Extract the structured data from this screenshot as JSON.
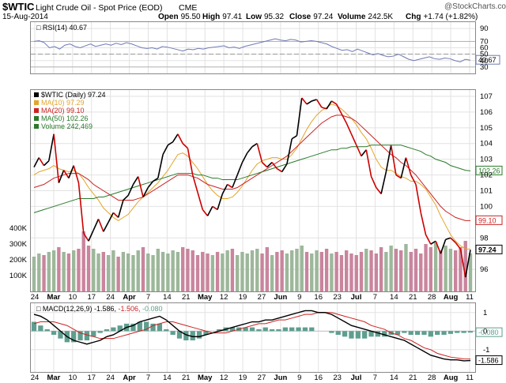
{
  "header": {
    "ticker": "$WTIC",
    "description": "Light Crude Oil - Spot Price (EOD)",
    "exchange": "CME",
    "date": "15-Aug-2014",
    "logo_text": "@StockCharts.com",
    "ohlc": [
      {
        "label": "Open",
        "value": "95.50"
      },
      {
        "label": "High",
        "value": "97.41"
      },
      {
        "label": "Low",
        "value": "95.32"
      },
      {
        "label": "Close",
        "value": "97.24"
      },
      {
        "label": "Volume",
        "value": "242.5K"
      },
      {
        "label": "Chg",
        "value": "+1.74 (+1.82%)"
      }
    ]
  },
  "x_axis_labels": [
    "24",
    "Mar",
    "10",
    "17",
    "24",
    "Apr",
    "7",
    "14",
    "21",
    "May",
    "12",
    "19",
    "27",
    "Jun",
    "9",
    "16",
    "23",
    "Jul",
    "7",
    "14",
    "21",
    "28",
    "Aug",
    "11"
  ],
  "chart_data": [
    {
      "type": "line",
      "panel": "rsi",
      "legend": "RSI(14) 40.67",
      "ylim": [
        20,
        100
      ],
      "yticks": [
        30,
        40,
        50,
        60,
        70,
        90
      ],
      "reference_lines": [
        30,
        50,
        70
      ],
      "last_value_label": "40.67",
      "colors": {
        "line": "#6f7ab5",
        "ref": "#808080"
      },
      "series": [
        {
          "values": [
            70,
            71,
            68,
            60,
            62,
            58,
            64,
            66,
            62,
            60,
            63,
            66,
            62,
            64,
            66,
            64,
            67,
            65,
            68,
            66,
            63,
            60,
            59,
            60,
            58,
            62,
            61,
            59,
            57,
            55,
            58,
            57,
            59,
            58,
            60,
            61,
            62,
            63,
            60,
            61,
            59,
            62,
            64,
            66,
            68,
            70,
            72,
            74,
            72,
            71,
            73,
            72,
            69,
            70,
            71,
            70,
            68,
            66,
            62,
            59,
            56,
            57,
            54,
            58,
            55,
            52,
            49,
            51,
            48,
            46,
            47,
            50,
            46,
            42,
            40,
            42,
            44,
            46,
            43,
            42,
            44,
            43,
            40,
            38,
            42,
            40.67
          ]
        }
      ]
    },
    {
      "type": "line",
      "panel": "price",
      "ylim": [
        94.6,
        107.4
      ],
      "yticks": [
        96,
        98,
        100,
        101,
        102,
        103,
        104,
        105,
        106,
        107
      ],
      "last_value_labels": [
        "97.24",
        "99.10",
        "102.26"
      ],
      "colors": {
        "up": "#000000",
        "down": "#cc0000",
        "ma10": "#e3a52a",
        "ma20": "#cc2222",
        "ma50": "#2a7a2a"
      },
      "legend": [
        {
          "text": "$WTIC (Daily) 97.24",
          "color": "#000000"
        },
        {
          "text": "MA(10) 97.29",
          "color": "#e3a52a"
        },
        {
          "text": "MA(20) 99.10",
          "color": "#cc2222"
        },
        {
          "text": "MA(50) 102.26",
          "color": "#2a7a2a"
        },
        {
          "text": "Volume 242,469",
          "color": "#2a7a2a"
        }
      ],
      "series": [
        {
          "name": "$WTIC",
          "values": [
            102.5,
            103.1,
            102.6,
            102.9,
            104.6,
            101.5,
            102.3,
            101.8,
            102.6,
            101.5,
            98.3,
            97.8,
            98.5,
            99.2,
            98.4,
            99.0,
            99.6,
            99.3,
            100.4,
            100.7,
            101.4,
            101.9,
            100.6,
            101.2,
            101.6,
            101.8,
            103.3,
            103.9,
            104.1,
            104.6,
            104.0,
            103.7,
            102.0,
            100.9,
            99.8,
            99.4,
            100.0,
            99.8,
            100.8,
            101.4,
            101.2,
            102.0,
            102.8,
            103.4,
            103.8,
            104.0,
            102.8,
            102.5,
            102.8,
            102.4,
            102.2,
            102.7,
            104.3,
            104.5,
            106.9,
            106.5,
            106.7,
            106.8,
            106.3,
            106.2,
            106.7,
            106.5,
            105.9,
            105.3,
            104.6,
            103.9,
            103.2,
            103.6,
            101.9,
            101.2,
            100.8,
            102.2,
            103.9,
            102.0,
            101.8,
            103.1,
            102.0,
            101.4,
            99.6,
            98.2,
            97.6,
            97.8,
            97.0,
            97.9,
            98.0,
            97.7,
            97.3,
            95.5,
            97.24
          ]
        },
        {
          "name": "MA(10)",
          "values": [
            102.0,
            102.2,
            102.3,
            102.4,
            102.6,
            102.4,
            102.3,
            102.2,
            102.3,
            102.1,
            101.7,
            101.2,
            100.8,
            100.4,
            99.9,
            99.6,
            99.3,
            99.1,
            99.3,
            99.5,
            99.9,
            100.3,
            100.6,
            100.9,
            101.2,
            101.5,
            101.9,
            102.3,
            102.8,
            103.3,
            103.4,
            103.2,
            102.8,
            102.4,
            101.9,
            101.4,
            101.0,
            100.7,
            100.5,
            100.5,
            100.6,
            100.9,
            101.3,
            101.8,
            102.3,
            102.7,
            102.9,
            103.0,
            103.1,
            103.1,
            103.0,
            103.0,
            103.3,
            103.7,
            104.3,
            104.9,
            105.4,
            105.8,
            106.1,
            106.3,
            106.5,
            106.4,
            106.2,
            105.9,
            105.6,
            105.2,
            104.7,
            104.3,
            103.7,
            103.0,
            102.5,
            102.3,
            102.3,
            102.1,
            101.9,
            101.8,
            101.6,
            101.6,
            101.4,
            101.1,
            100.6,
            100.1,
            99.4,
            98.8,
            98.2,
            97.8,
            97.5,
            97.3,
            97.29
          ]
        },
        {
          "name": "MA(20)",
          "values": [
            101.2,
            101.3,
            101.4,
            101.6,
            101.8,
            101.9,
            102.0,
            102.1,
            102.1,
            102.1,
            101.9,
            101.7,
            101.4,
            101.2,
            101.0,
            100.8,
            100.6,
            100.4,
            100.4,
            100.4,
            100.4,
            100.5,
            100.6,
            100.8,
            101.0,
            101.2,
            101.4,
            101.6,
            101.8,
            102.0,
            102.0,
            102.0,
            101.9,
            101.8,
            101.6,
            101.4,
            101.3,
            101.2,
            101.1,
            101.1,
            101.1,
            101.2,
            101.4,
            101.6,
            101.8,
            102.0,
            102.2,
            102.4,
            102.6,
            102.8,
            103.0,
            103.2,
            103.5,
            103.8,
            104.1,
            104.4,
            104.7,
            105.0,
            105.3,
            105.5,
            105.7,
            105.8,
            105.8,
            105.7,
            105.6,
            105.4,
            105.1,
            104.8,
            104.5,
            104.2,
            103.9,
            103.6,
            103.3,
            103.1,
            102.8,
            102.6,
            102.3,
            102.0,
            101.6,
            101.2,
            100.8,
            100.4,
            100.0,
            99.7,
            99.5,
            99.3,
            99.2,
            99.1,
            99.1
          ]
        },
        {
          "name": "MA(50)",
          "values": [
            99.6,
            99.7,
            99.8,
            99.9,
            100.0,
            100.1,
            100.2,
            100.3,
            100.4,
            100.5,
            100.5,
            100.5,
            100.5,
            100.6,
            100.6,
            100.7,
            100.8,
            100.9,
            101.0,
            101.1,
            101.2,
            101.3,
            101.4,
            101.5,
            101.6,
            101.7,
            101.8,
            101.9,
            102.0,
            102.1,
            102.1,
            102.1,
            102.1,
            102.0,
            102.0,
            101.9,
            101.8,
            101.8,
            101.7,
            101.7,
            101.7,
            101.7,
            101.8,
            101.9,
            102.0,
            102.1,
            102.2,
            102.3,
            102.4,
            102.5,
            102.6,
            102.7,
            102.8,
            102.9,
            103.0,
            103.1,
            103.2,
            103.3,
            103.4,
            103.5,
            103.6,
            103.6,
            103.7,
            103.7,
            103.8,
            103.8,
            103.8,
            103.8,
            103.9,
            103.9,
            103.9,
            103.9,
            103.9,
            103.9,
            103.9,
            103.8,
            103.7,
            103.6,
            103.5,
            103.3,
            103.2,
            103.0,
            102.9,
            102.8,
            102.6,
            102.5,
            102.4,
            102.3,
            102.26
          ]
        }
      ]
    },
    {
      "type": "bar",
      "panel": "volume",
      "ylim": [
        0,
        400
      ],
      "yticks": [
        100,
        200,
        300,
        400
      ],
      "ytick_labels": [
        "100K",
        "200K",
        "300K",
        "400K"
      ],
      "colors": {
        "up": "#9db79a",
        "down": "#c9859d"
      },
      "series": [
        {
          "name": "Volume",
          "values": [
            220,
            240,
            230,
            250,
            260,
            280,
            250,
            240,
            260,
            270,
            380,
            290,
            270,
            240,
            250,
            230,
            260,
            220,
            250,
            240,
            230,
            260,
            280,
            240,
            230,
            270,
            250,
            240,
            260,
            250,
            280,
            270,
            260,
            230,
            250,
            240,
            230,
            250,
            240,
            260,
            270,
            230,
            250,
            240,
            260,
            270,
            240,
            280,
            230,
            250,
            260,
            240,
            260,
            270,
            290,
            250,
            240,
            260,
            250,
            270,
            240,
            250,
            230,
            260,
            240,
            230,
            250,
            270,
            260,
            240,
            280,
            250,
            290,
            270,
            260,
            300,
            250,
            270,
            240,
            300,
            280,
            310,
            260,
            290,
            270,
            260,
            280,
            320,
            242
          ]
        }
      ]
    },
    {
      "type": "line",
      "panel": "macd",
      "legend_prefix": "MACD(12,26,9)",
      "legend_values": [
        "-1.586",
        "-1.506",
        "-0.080"
      ],
      "ylim": [
        -2.2,
        1.5
      ],
      "yticks": [
        -1,
        0,
        1
      ],
      "last_value_labels": [
        "-0.080",
        "-1.586"
      ],
      "colors": {
        "macd": "#000000",
        "signal": "#cc2222",
        "hist": "#5f9e8f"
      },
      "series": [
        {
          "name": "MACD",
          "values": [
            0.9,
            0.8,
            0.6,
            0.3,
            0.0,
            -0.3,
            -0.5,
            -0.6,
            -0.7,
            -0.6,
            -0.5,
            -0.3,
            -0.2,
            0.0,
            0.2,
            0.3,
            0.5,
            0.6,
            0.7,
            0.8,
            0.6,
            0.3,
            0.0,
            -0.2,
            -0.3,
            -0.3,
            -0.2,
            -0.1,
            0.0,
            0.1,
            0.2,
            0.3,
            0.4,
            0.5,
            0.5,
            0.6,
            0.6,
            0.7,
            0.8,
            0.9,
            1.0,
            1.1,
            1.1,
            1.0,
            1.0,
            0.9,
            0.7,
            0.5,
            0.3,
            0.2,
            0.1,
            0.0,
            -0.1,
            -0.2,
            -0.3,
            -0.4,
            -0.5,
            -0.7,
            -0.9,
            -1.1,
            -1.3,
            -1.4,
            -1.5,
            -1.55,
            -1.55,
            -1.6,
            -1.586
          ]
        },
        {
          "name": "Signal",
          "values": [
            0.4,
            0.5,
            0.5,
            0.5,
            0.4,
            0.3,
            0.1,
            -0.1,
            -0.2,
            -0.3,
            -0.4,
            -0.4,
            -0.4,
            -0.3,
            -0.2,
            -0.1,
            0.0,
            0.1,
            0.3,
            0.4,
            0.5,
            0.5,
            0.4,
            0.3,
            0.2,
            0.1,
            0.0,
            -0.1,
            -0.1,
            -0.1,
            0.0,
            0.1,
            0.2,
            0.3,
            0.4,
            0.4,
            0.5,
            0.6,
            0.6,
            0.7,
            0.8,
            0.9,
            0.9,
            1.0,
            1.0,
            1.0,
            0.9,
            0.8,
            0.7,
            0.6,
            0.5,
            0.3,
            0.2,
            0.1,
            -0.1,
            -0.2,
            -0.4,
            -0.5,
            -0.7,
            -0.9,
            -1.0,
            -1.2,
            -1.3,
            -1.4,
            -1.45,
            -1.5,
            -1.506
          ]
        },
        {
          "name": "Histogram",
          "values": [
            0.5,
            0.3,
            0.1,
            -0.2,
            -0.4,
            -0.6,
            -0.6,
            -0.5,
            -0.5,
            -0.3,
            -0.1,
            0.1,
            0.2,
            0.3,
            0.4,
            0.4,
            0.5,
            0.5,
            0.4,
            0.4,
            0.1,
            -0.2,
            -0.4,
            -0.5,
            -0.5,
            -0.4,
            -0.2,
            0.0,
            0.1,
            0.2,
            0.2,
            0.2,
            0.2,
            0.2,
            0.1,
            0.2,
            0.1,
            0.1,
            0.2,
            0.2,
            0.2,
            0.2,
            0.2,
            0.0,
            0.0,
            -0.1,
            -0.2,
            -0.3,
            -0.4,
            -0.4,
            -0.4,
            -0.3,
            -0.3,
            -0.3,
            -0.2,
            -0.2,
            -0.1,
            -0.2,
            -0.2,
            -0.2,
            -0.3,
            -0.2,
            -0.2,
            -0.15,
            -0.1,
            -0.1,
            -0.08
          ]
        }
      ]
    }
  ]
}
